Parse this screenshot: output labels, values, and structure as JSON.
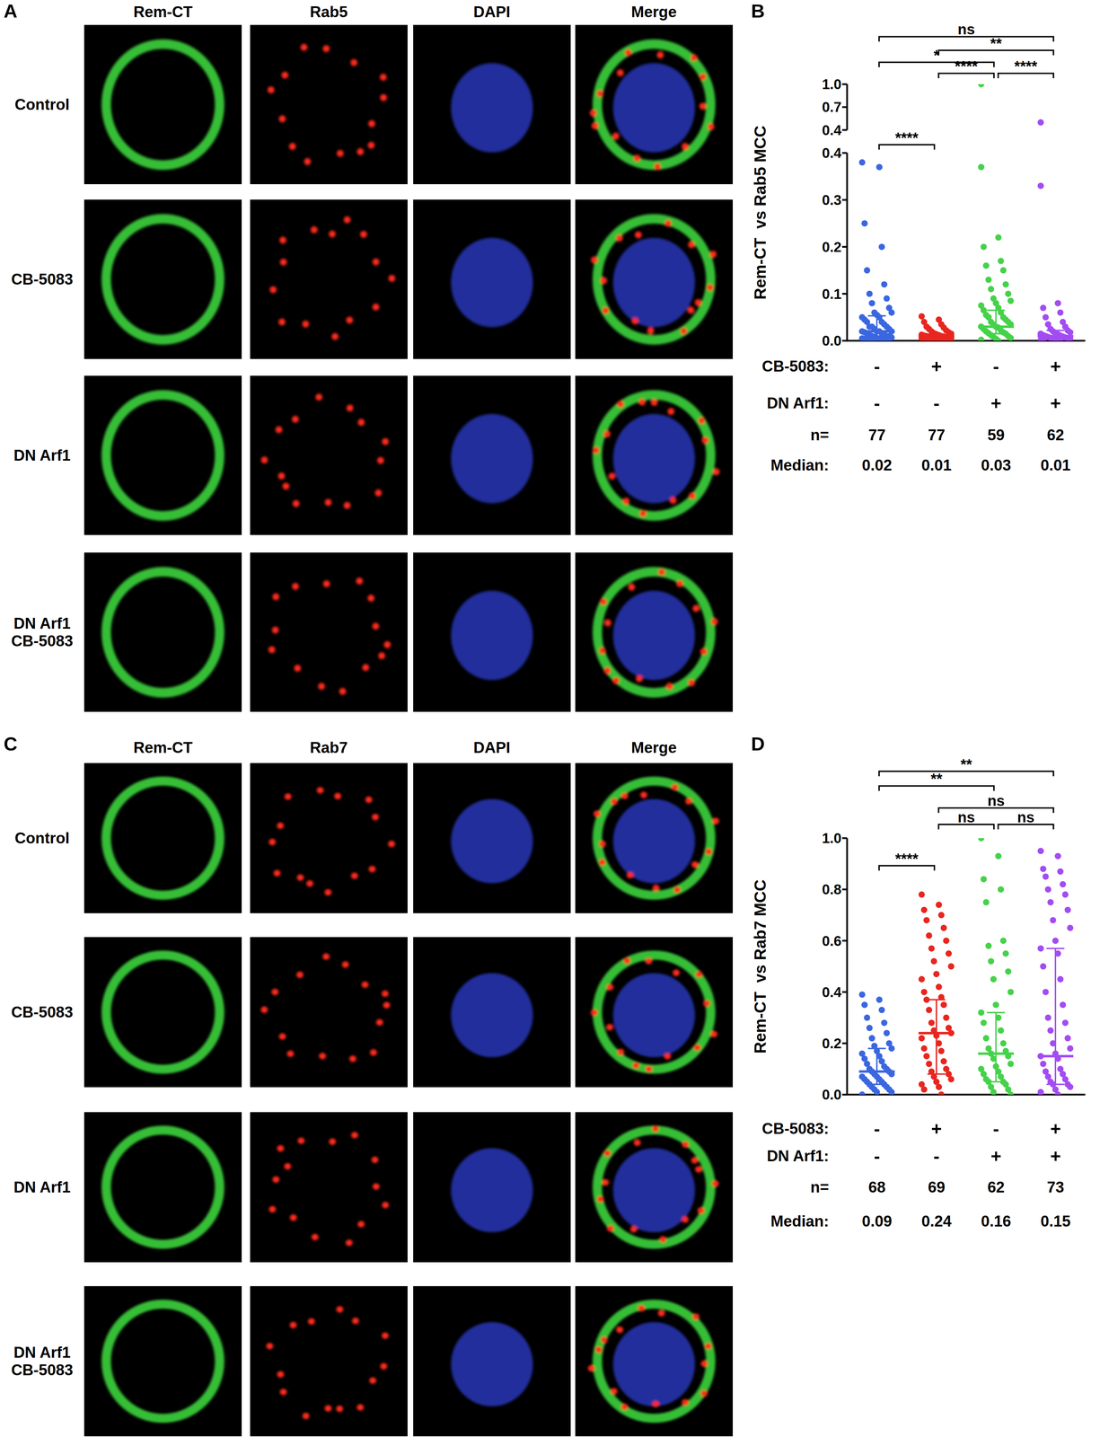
{
  "figure": {
    "panels": [
      {
        "label": "A",
        "columns": [
          "Rem-CT",
          "Rab5",
          "DAPI",
          "Merge"
        ],
        "rows": [
          "Control",
          "CB-5083",
          "DN Arf1",
          "DN Arf1\nCB-5083"
        ]
      },
      {
        "label": "C",
        "columns": [
          "Rem-CT",
          "Rab7",
          "DAPI",
          "Merge"
        ],
        "rows": [
          "Control",
          "CB-5083",
          "DN Arf1",
          "DN Arf1\nCB-5083"
        ]
      }
    ]
  },
  "chart_data": [
    {
      "panel": "B",
      "type": "scatter",
      "ylabel": "Rem-CT  vs Rab5 MCC",
      "tick_labels": "y",
      "ylim": [
        0,
        0.4
      ],
      "yticks": [
        {
          "value": 0,
          "label": "0.0"
        },
        0.1,
        0.2,
        0.3,
        0.4
      ],
      "series": [
        {
          "color": "#3a67e0",
          "values": [
            0.38,
            0.37,
            0.25,
            0.2,
            0.15,
            0.12,
            0.1,
            0.09,
            0.08,
            0.07,
            0.06,
            0.06,
            0.055,
            0.05,
            0.05,
            0.045,
            0.04,
            0.04,
            0.035,
            0.03,
            0.03,
            0.03,
            0.025,
            0.025,
            0.02,
            0.02,
            0.02,
            0.02,
            0.018,
            0.016,
            0.015,
            0.014,
            0.012,
            0.01,
            0.01,
            0.01,
            0.008,
            0.007,
            0.006,
            0.005,
            0.005,
            0.004,
            0.003,
            0.003,
            0.002,
            0.002,
            0.001,
            0.001,
            0,
            0
          ]
        },
        {
          "color": "#e8261f",
          "values": [
            0.052,
            0.045,
            0.04,
            0.035,
            0.03,
            0.028,
            0.025,
            0.022,
            0.02,
            0.018,
            0.016,
            0.015,
            0.014,
            0.013,
            0.012,
            0.011,
            0.01,
            0.01,
            0.009,
            0.009,
            0.008,
            0.008,
            0.007,
            0.007,
            0.006,
            0.006,
            0.005,
            0.005,
            0.004,
            0.004,
            0.003,
            0.003,
            0.002,
            0.002,
            0.001,
            0.001,
            0,
            0
          ]
        },
        {
          "color": "#45d24a",
          "values": [
            0.37,
            0.22,
            0.2,
            0.17,
            0.16,
            0.15,
            0.13,
            0.12,
            0.11,
            0.1,
            0.09,
            0.085,
            0.08,
            0.075,
            0.07,
            0.065,
            0.06,
            0.055,
            0.05,
            0.05,
            0.045,
            0.04,
            0.04,
            0.035,
            0.035,
            0.03,
            0.03,
            0.028,
            0.025,
            0.022,
            0.02,
            0.018,
            0.016,
            0.015,
            0.012,
            0.01,
            0.008,
            0.006,
            0.004,
            0.002,
            0
          ]
        },
        {
          "color": "#a24cf2",
          "values": [
            0.33,
            0.08,
            0.07,
            0.06,
            0.05,
            0.04,
            0.035,
            0.03,
            0.025,
            0.022,
            0.02,
            0.018,
            0.016,
            0.015,
            0.014,
            0.012,
            0.011,
            0.01,
            0.009,
            0.008,
            0.007,
            0.006,
            0.005,
            0.005,
            0.004,
            0.003,
            0.002,
            0.002,
            0.001,
            0
          ]
        }
      ],
      "medians": [
        0.02,
        0.01,
        0.03,
        0.01
      ],
      "iqr": [
        [
          0.005,
          0.053
        ],
        [
          0.003,
          0.011
        ],
        [
          0.015,
          0.065
        ],
        [
          0.005,
          0.022
        ]
      ],
      "comparisons": [
        {
          "from": 0,
          "to": 3,
          "label": "ns"
        },
        {
          "from": 1,
          "to": 3,
          "label": "**"
        },
        {
          "from": 0,
          "to": 2,
          "label": "*"
        },
        {
          "from": 1,
          "to": 2,
          "label": "****"
        },
        {
          "from": 2,
          "to": 3,
          "label": "****"
        },
        {
          "from": 0,
          "to": 1,
          "label": "****"
        }
      ],
      "table": [
        {
          "label": "CB-5083:",
          "cells": [
            "-",
            "+",
            "-",
            "+"
          ]
        },
        {
          "label": "DN Arf1:",
          "cells": [
            "-",
            "-",
            "+",
            "+"
          ]
        },
        {
          "label": "n=",
          "cells": [
            77,
            77,
            59,
            62
          ]
        }
      ],
      "median_label": "Median:"
    },
    {
      "type": "scatter",
      "tick_labels": "y",
      "ylim": [
        0.4,
        1.0
      ],
      "yticks": [
        0.4,
        0.7,
        {
          "value": 1.0,
          "label": "1.0"
        }
      ],
      "series": [
        {
          "color": "#3a67e0",
          "values": []
        },
        {
          "color": "#e8261f",
          "values": []
        },
        {
          "color": "#45d24a",
          "values": [
            1.0
          ]
        },
        {
          "color": "#a24cf2",
          "values": [
            0.5
          ]
        }
      ]
    },
    {
      "panel": "D",
      "type": "scatter",
      "ylabel": "Rem-CT  vs Rab7 MCC",
      "tick_labels": "y",
      "ylim": [
        0,
        1.0
      ],
      "yticks": [
        {
          "value": 0,
          "label": "0.0"
        },
        0.2,
        0.4,
        0.6,
        0.8,
        {
          "value": 1.0,
          "label": "1.0"
        }
      ],
      "series": [
        {
          "color": "#3a67e0",
          "values": [
            0.39,
            0.37,
            0.35,
            0.33,
            0.3,
            0.28,
            0.26,
            0.24,
            0.22,
            0.2,
            0.19,
            0.18,
            0.17,
            0.16,
            0.15,
            0.14,
            0.13,
            0.12,
            0.11,
            0.1,
            0.1,
            0.09,
            0.09,
            0.08,
            0.08,
            0.07,
            0.07,
            0.06,
            0.06,
            0.05,
            0.05,
            0.04,
            0.04,
            0.03,
            0.03,
            0.02,
            0.02,
            0.01,
            0.01,
            0
          ]
        },
        {
          "color": "#e8261f",
          "values": [
            0.78,
            0.74,
            0.72,
            0.7,
            0.68,
            0.65,
            0.62,
            0.6,
            0.57,
            0.55,
            0.52,
            0.5,
            0.47,
            0.45,
            0.42,
            0.4,
            0.38,
            0.37,
            0.35,
            0.33,
            0.3,
            0.28,
            0.26,
            0.25,
            0.24,
            0.23,
            0.22,
            0.2,
            0.18,
            0.17,
            0.15,
            0.13,
            0.12,
            0.1,
            0.09,
            0.08,
            0.07,
            0.06,
            0.05,
            0.04,
            0.03,
            0.02,
            0
          ]
        },
        {
          "color": "#45d24a",
          "values": [
            1.0,
            0.93,
            0.84,
            0.8,
            0.75,
            0.6,
            0.58,
            0.55,
            0.52,
            0.48,
            0.45,
            0.4,
            0.35,
            0.32,
            0.3,
            0.28,
            0.25,
            0.22,
            0.2,
            0.18,
            0.17,
            0.16,
            0.15,
            0.14,
            0.12,
            0.11,
            0.1,
            0.09,
            0.08,
            0.07,
            0.06,
            0.05,
            0.05,
            0.04,
            0.03,
            0.02,
            0.01,
            0
          ]
        },
        {
          "color": "#a24cf2",
          "values": [
            0.95,
            0.93,
            0.88,
            0.87,
            0.85,
            0.82,
            0.8,
            0.78,
            0.75,
            0.72,
            0.68,
            0.65,
            0.6,
            0.57,
            0.55,
            0.5,
            0.45,
            0.4,
            0.35,
            0.3,
            0.28,
            0.25,
            0.22,
            0.2,
            0.18,
            0.16,
            0.15,
            0.14,
            0.12,
            0.1,
            0.09,
            0.08,
            0.07,
            0.06,
            0.05,
            0.04,
            0.04,
            0.03,
            0.02,
            0.01,
            0
          ]
        }
      ],
      "medians": [
        0.09,
        0.24,
        0.16,
        0.15
      ],
      "iqr": [
        [
          0.04,
          0.18
        ],
        [
          0.08,
          0.37
        ],
        [
          0.05,
          0.32
        ],
        [
          0.04,
          0.57
        ]
      ],
      "comparisons": [
        {
          "from": 0,
          "to": 3,
          "label": "**"
        },
        {
          "from": 0,
          "to": 2,
          "label": "**"
        },
        {
          "from": 1,
          "to": 3,
          "label": "ns"
        },
        {
          "from": 1,
          "to": 2,
          "label": "ns"
        },
        {
          "from": 2,
          "to": 3,
          "label": "ns"
        },
        {
          "from": 0,
          "to": 1,
          "label": "****"
        }
      ],
      "table": [
        {
          "label": "CB-5083:",
          "cells": [
            "-",
            "+",
            "-",
            "+"
          ]
        },
        {
          "label": "DN Arf1:",
          "cells": [
            "-",
            "-",
            "+",
            "+"
          ]
        },
        {
          "label": "n=",
          "cells": [
            68,
            69,
            62,
            73
          ]
        }
      ],
      "median_label": "Median:"
    }
  ]
}
